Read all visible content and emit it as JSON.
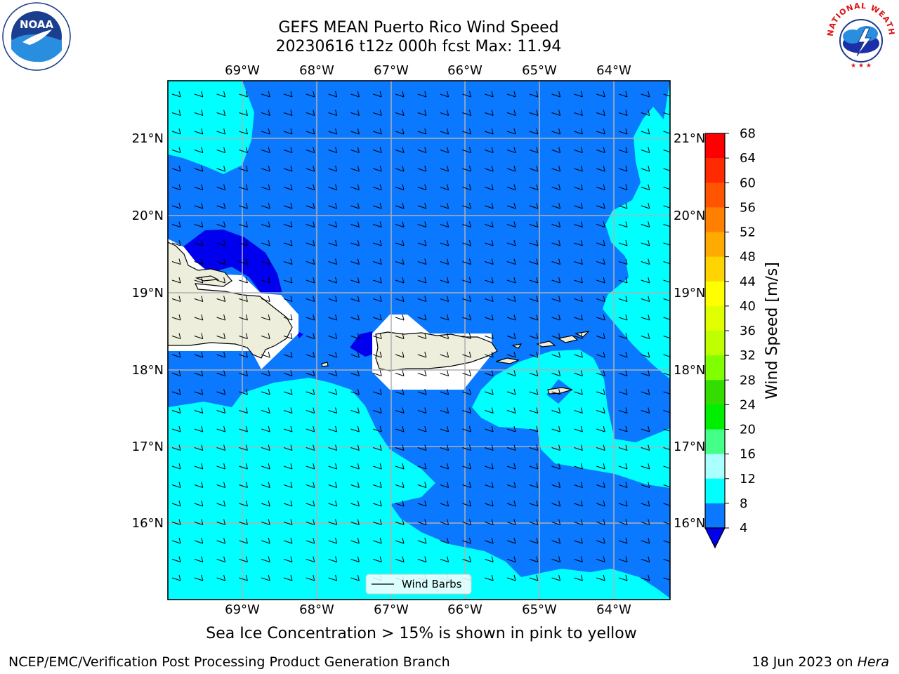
{
  "title": {
    "line1": "GEFS MEAN Puerto Rico Wind Speed",
    "line2": "20230616 t12z 000h fcst   Max: 11.94"
  },
  "subtitle": "Sea Ice Concentration > 15% is shown in pink to yellow",
  "footer": {
    "left": "NCEP/EMC/Verification Post Processing Product Generation Branch",
    "right_prefix": "18 Jun 2023 on ",
    "right_host": "Hera"
  },
  "map": {
    "lon_labels": [
      "69°W",
      "68°W",
      "67°W",
      "66°W",
      "65°W",
      "64°W"
    ],
    "lat_labels": [
      "21°N",
      "20°N",
      "19°N",
      "18°N",
      "17°N",
      "16°N"
    ],
    "legend_label": "Wind Barbs",
    "colors": {
      "land": "#eeeedd",
      "speed_4_8": "#0a78ff",
      "speed_below_4": "#0000ee",
      "speed_8_12": "#00ffff",
      "grid": "#b0b0b0"
    }
  },
  "colorbar": {
    "label": "Wind Speed [m/s]",
    "ticks": [
      "68",
      "64",
      "60",
      "56",
      "52",
      "48",
      "44",
      "40",
      "36",
      "32",
      "28",
      "24",
      "20",
      "16",
      "12",
      "8",
      "4"
    ],
    "colors": [
      "#ff0000",
      "#ff2a00",
      "#ff5500",
      "#ff8000",
      "#ffaa00",
      "#ffd400",
      "#ffff00",
      "#e0ff00",
      "#c0ff00",
      "#80ff00",
      "#33dd00",
      "#00ee00",
      "#44ff88",
      "#aaffff",
      "#55ffff",
      "#00ffff",
      "#0a78ff"
    ],
    "under_color": "#0000ee"
  },
  "logos": {
    "noaa_text": "NOAA",
    "nws_text": "NATIONAL WEATHER SERVICE"
  }
}
